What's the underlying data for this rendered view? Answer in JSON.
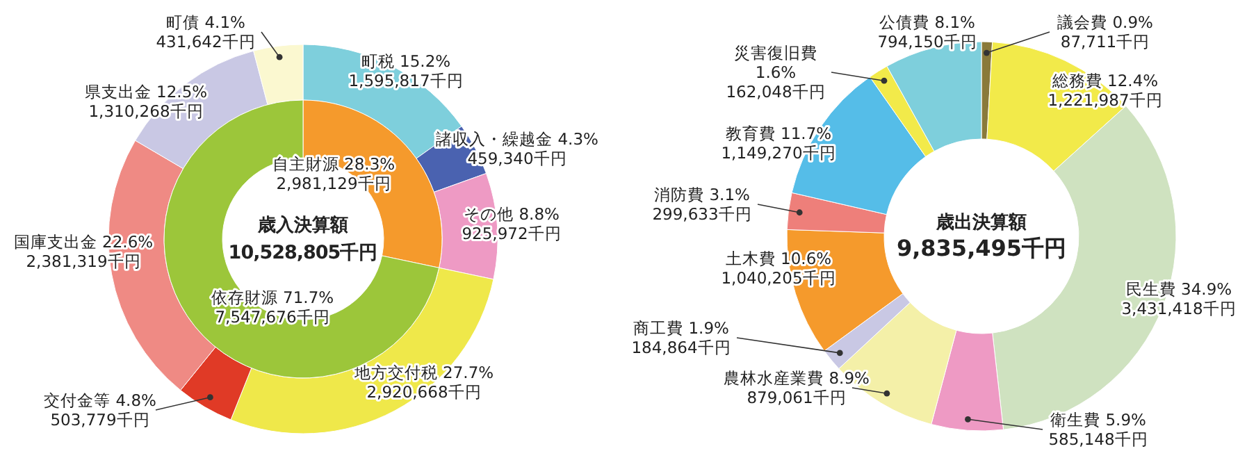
{
  "chart_data": [
    {
      "type": "donut",
      "title": "歳入決算額",
      "subtitle": "10,528,805千円",
      "categories": [
        "町税",
        "諸収入・繰越金",
        "その他",
        "地方交付税",
        "交付金等",
        "国庫支出金",
        "県支出金",
        "町債"
      ],
      "values": [
        1595817,
        459340,
        925972,
        2920668,
        503779,
        2381319,
        1310268,
        431642
      ],
      "colors": [
        "#7ecfdc",
        "#4a62b0",
        "#ee9ac4",
        "#efe84a",
        "#e03a26",
        "#ef8a84",
        "#c9c8e4",
        "#fbf8d0"
      ],
      "value_labels": [
        "15.2%\n1,595,817千円",
        "4.3%\n459,340千円",
        "8.8%\n925,972千円",
        "27.7%\n2,920,668千円",
        "4.8%\n503,779千円",
        "22.6%\n2,381,319千円",
        "12.5%\n1,310,268千円",
        "4.1%\n431,642千円"
      ]
    },
    {
      "type": "donut",
      "categories": [
        "自主財源",
        "依存財源"
      ],
      "values": [
        2981129,
        7547676
      ],
      "colors": [
        "#f59a2c",
        "#9cc63a"
      ],
      "value_labels": [
        "28.3%\n2,981,129千円",
        "71.7%\n7,547,676千円"
      ]
    },
    {
      "type": "donut",
      "title": "歳出決算額",
      "subtitle": "9,835,495千円",
      "categories": [
        "議会費",
        "総務費",
        "民生費",
        "衛生費",
        "農林水産業費",
        "商工費",
        "土木費",
        "消防費",
        "教育費",
        "災害復旧費",
        "公債費"
      ],
      "values": [
        87711,
        1221987,
        3431418,
        585148,
        879061,
        184864,
        1040205,
        299633,
        1149270,
        162048,
        794150
      ],
      "colors": [
        "#8a7a3a",
        "#f2ea4a",
        "#cfe2c0",
        "#ee9ac4",
        "#f4f0a8",
        "#c9c8e4",
        "#f59a2c",
        "#ee7f7a",
        "#55bde8",
        "#f2ea4a",
        "#7ecfdc"
      ],
      "value_labels": [
        "0.9%\n87,711千円",
        "12.4%\n1,221,987千円",
        "34.9%\n3,431,418千円",
        "5.9%\n585,148千円",
        "8.9%\n879,061千円",
        "1.9%\n184,864千円",
        "10.6%\n1,040,205千円",
        "3.1%\n299,633千円",
        "11.7%\n1,149,270千円",
        "1.6%\n162,048千円",
        "8.1%\n794,150千円"
      ]
    }
  ]
}
